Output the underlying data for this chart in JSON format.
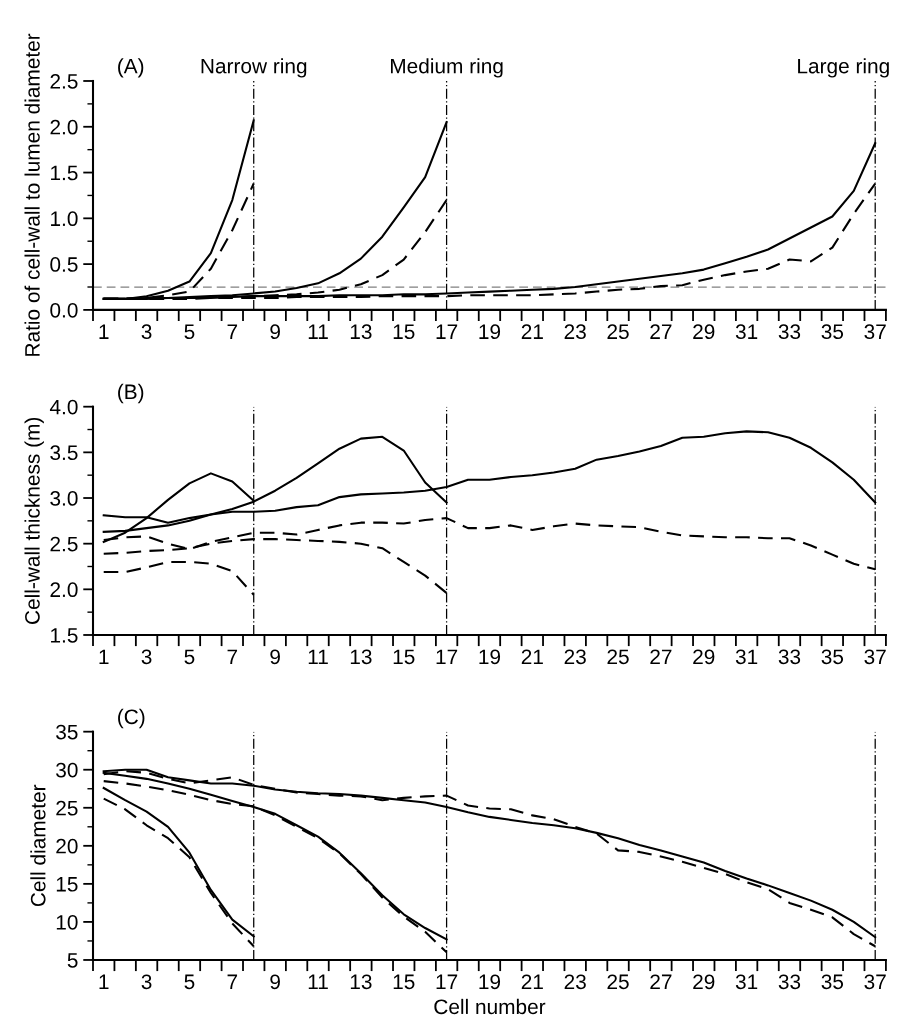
{
  "chart_data": [
    {
      "type": "line",
      "ylabel": "Ratio of cell-wall to lumen diameter",
      "annotations": [
        "(A)"
      ],
      "xlim": [
        0.5,
        37.5
      ],
      "ylim": [
        0,
        2.5
      ],
      "xticks": [
        {
          "value": 0.5,
          "label": null
        },
        {
          "value": 1.5,
          "label": null
        },
        {
          "value": 2.5,
          "label": null
        },
        {
          "value": 3.5,
          "label": null
        },
        {
          "value": 4.5,
          "label": null
        },
        {
          "value": 5.5,
          "label": null
        },
        {
          "value": 6.5,
          "label": null
        },
        {
          "value": 7.5,
          "label": null
        },
        {
          "value": 8.5,
          "label": null
        },
        {
          "value": 9.5,
          "label": null
        },
        {
          "value": 10.5,
          "label": null
        },
        {
          "value": 11.5,
          "label": null
        },
        {
          "value": 12.5,
          "label": null
        },
        {
          "value": 13.5,
          "label": null
        },
        {
          "value": 14.5,
          "label": null
        },
        {
          "value": 15.5,
          "label": null
        },
        {
          "value": 16.5,
          "label": null
        },
        {
          "value": 17.5,
          "label": null
        },
        {
          "value": 18.5,
          "label": null
        },
        {
          "value": 19.5,
          "label": null
        },
        {
          "value": 20.5,
          "label": null
        },
        {
          "value": 21.5,
          "label": null
        },
        {
          "value": 22.5,
          "label": null
        },
        {
          "value": 23.5,
          "label": null
        },
        {
          "value": 24.5,
          "label": null
        },
        {
          "value": 25.5,
          "label": null
        },
        {
          "value": 26.5,
          "label": null
        },
        {
          "value": 27.5,
          "label": null
        },
        {
          "value": 28.5,
          "label": null
        },
        {
          "value": 29.5,
          "label": null
        },
        {
          "value": 30.5,
          "label": null
        },
        {
          "value": 31.5,
          "label": null
        },
        {
          "value": 32.5,
          "label": null
        },
        {
          "value": 33.5,
          "label": null
        },
        {
          "value": 34.5,
          "label": null
        },
        {
          "value": 35.5,
          "label": null
        },
        {
          "value": 36.5,
          "label": null
        },
        {
          "value": 37.5,
          "label": null
        },
        1,
        3,
        5,
        7,
        9,
        11,
        13,
        15,
        17,
        19,
        21,
        23,
        25,
        27,
        29,
        31,
        33,
        35,
        37
      ],
      "yticks": [
        {
          "value": 0.0,
          "label": "0.0"
        },
        {
          "value": 0.25,
          "label": null
        },
        {
          "value": 0.5,
          "label": "0.5"
        },
        {
          "value": 0.75,
          "label": null
        },
        {
          "value": 1.0,
          "label": "1.0"
        },
        {
          "value": 1.25,
          "label": null
        },
        {
          "value": 1.5,
          "label": "1.5"
        },
        {
          "value": 1.75,
          "label": null
        },
        {
          "value": 2.0,
          "label": "2.0"
        },
        {
          "value": 2.25,
          "label": null
        },
        {
          "value": 2.5,
          "label": "2.5"
        }
      ],
      "ref_lines": [
        {
          "axis": "y",
          "value": 0.25,
          "label": null,
          "color": "#808080",
          "line_style": "dashed"
        },
        {
          "axis": "x",
          "value": 8,
          "label": "Narrow ring",
          "color": "#000000",
          "line_style": "dashdot"
        },
        {
          "axis": "x",
          "value": 17,
          "label": "Medium ring",
          "color": "#000000",
          "line_style": "dashdot"
        },
        {
          "axis": "x",
          "value": 37,
          "label": "Large ring",
          "color": "#000000",
          "line_style": "dashdot"
        }
      ],
      "series": [
        {
          "color": "#000000",
          "line_style": "solid",
          "x": [
            1,
            2,
            3,
            4,
            5,
            6,
            7,
            8
          ],
          "values": [
            0.12,
            0.12,
            0.15,
            0.21,
            0.31,
            0.62,
            1.2,
            2.07
          ]
        },
        {
          "color": "#000000",
          "line_style": "dashed",
          "x": [
            1,
            2,
            3,
            4,
            5,
            6,
            7,
            8
          ],
          "values": [
            0.12,
            0.12,
            0.13,
            0.16,
            0.2,
            0.45,
            0.87,
            1.38
          ]
        },
        {
          "color": "#000000",
          "line_style": "solid",
          "x": [
            1,
            2,
            3,
            4,
            5,
            6,
            7,
            8,
            9,
            10,
            11,
            12,
            13,
            14,
            15,
            16,
            17
          ],
          "values": [
            0.12,
            0.12,
            0.13,
            0.13,
            0.14,
            0.15,
            0.16,
            0.18,
            0.2,
            0.24,
            0.29,
            0.4,
            0.56,
            0.8,
            1.12,
            1.45,
            2.05
          ]
        },
        {
          "color": "#000000",
          "line_style": "dashed",
          "x": [
            1,
            2,
            3,
            4,
            5,
            6,
            7,
            8,
            9,
            10,
            11,
            12,
            13,
            14,
            15,
            16,
            17
          ],
          "values": [
            0.12,
            0.12,
            0.12,
            0.13,
            0.13,
            0.14,
            0.14,
            0.15,
            0.16,
            0.17,
            0.19,
            0.22,
            0.28,
            0.38,
            0.55,
            0.85,
            1.2
          ]
        },
        {
          "color": "#000000",
          "line_style": "solid",
          "x": [
            1,
            2,
            3,
            4,
            5,
            6,
            7,
            8,
            9,
            10,
            11,
            12,
            13,
            14,
            15,
            16,
            17,
            18,
            19,
            20,
            21,
            22,
            23,
            24,
            25,
            26,
            27,
            28,
            29,
            30,
            31,
            32,
            33,
            34,
            35,
            36,
            37
          ],
          "values": [
            0.12,
            0.12,
            0.12,
            0.13,
            0.13,
            0.13,
            0.14,
            0.15,
            0.15,
            0.15,
            0.15,
            0.16,
            0.16,
            0.16,
            0.17,
            0.17,
            0.18,
            0.19,
            0.2,
            0.21,
            0.22,
            0.23,
            0.25,
            0.28,
            0.31,
            0.34,
            0.37,
            0.4,
            0.44,
            0.51,
            0.58,
            0.66,
            0.78,
            0.9,
            1.02,
            1.3,
            1.82
          ]
        },
        {
          "color": "#000000",
          "line_style": "dashed",
          "x": [
            1,
            2,
            3,
            4,
            5,
            6,
            7,
            8,
            9,
            10,
            11,
            12,
            13,
            14,
            15,
            16,
            17,
            18,
            19,
            20,
            21,
            22,
            23,
            24,
            25,
            26,
            27,
            28,
            29,
            30,
            31,
            32,
            33,
            34,
            35,
            36,
            37
          ],
          "values": [
            0.12,
            0.12,
            0.12,
            0.12,
            0.12,
            0.13,
            0.13,
            0.13,
            0.13,
            0.14,
            0.14,
            0.14,
            0.14,
            0.15,
            0.15,
            0.15,
            0.15,
            0.16,
            0.16,
            0.16,
            0.16,
            0.17,
            0.18,
            0.2,
            0.22,
            0.23,
            0.26,
            0.27,
            0.33,
            0.38,
            0.42,
            0.45,
            0.55,
            0.53,
            0.68,
            1.05,
            1.38
          ]
        }
      ]
    },
    {
      "type": "line",
      "ylabel": "Cell-wall thickness (m)",
      "annotations": [
        "(B)"
      ],
      "xlim": [
        0.5,
        37.5
      ],
      "ylim": [
        1.5,
        4.0
      ],
      "xticks": [
        {
          "value": 0.5,
          "label": null
        },
        {
          "value": 1.5,
          "label": null
        },
        {
          "value": 2.5,
          "label": null
        },
        {
          "value": 3.5,
          "label": null
        },
        {
          "value": 4.5,
          "label": null
        },
        {
          "value": 5.5,
          "label": null
        },
        {
          "value": 6.5,
          "label": null
        },
        {
          "value": 7.5,
          "label": null
        },
        {
          "value": 8.5,
          "label": null
        },
        {
          "value": 9.5,
          "label": null
        },
        {
          "value": 10.5,
          "label": null
        },
        {
          "value": 11.5,
          "label": null
        },
        {
          "value": 12.5,
          "label": null
        },
        {
          "value": 13.5,
          "label": null
        },
        {
          "value": 14.5,
          "label": null
        },
        {
          "value": 15.5,
          "label": null
        },
        {
          "value": 16.5,
          "label": null
        },
        {
          "value": 17.5,
          "label": null
        },
        {
          "value": 18.5,
          "label": null
        },
        {
          "value": 19.5,
          "label": null
        },
        {
          "value": 20.5,
          "label": null
        },
        {
          "value": 21.5,
          "label": null
        },
        {
          "value": 22.5,
          "label": null
        },
        {
          "value": 23.5,
          "label": null
        },
        {
          "value": 24.5,
          "label": null
        },
        {
          "value": 25.5,
          "label": null
        },
        {
          "value": 26.5,
          "label": null
        },
        {
          "value": 27.5,
          "label": null
        },
        {
          "value": 28.5,
          "label": null
        },
        {
          "value": 29.5,
          "label": null
        },
        {
          "value": 30.5,
          "label": null
        },
        {
          "value": 31.5,
          "label": null
        },
        {
          "value": 32.5,
          "label": null
        },
        {
          "value": 33.5,
          "label": null
        },
        {
          "value": 34.5,
          "label": null
        },
        {
          "value": 35.5,
          "label": null
        },
        {
          "value": 36.5,
          "label": null
        },
        {
          "value": 37.5,
          "label": null
        },
        1,
        3,
        5,
        7,
        9,
        11,
        13,
        15,
        17,
        19,
        21,
        23,
        25,
        27,
        29,
        31,
        33,
        35,
        37
      ],
      "yticks": [
        1.5,
        {
          "value": 1.75,
          "label": null
        },
        {
          "value": 2.0,
          "label": "2.0"
        },
        {
          "value": 2.25,
          "label": null
        },
        2.5,
        {
          "value": 2.75,
          "label": null
        },
        {
          "value": 3.0,
          "label": "3.0"
        },
        {
          "value": 3.25,
          "label": null
        },
        3.5,
        {
          "value": 3.75,
          "label": null
        },
        {
          "value": 4.0,
          "label": "4.0"
        }
      ],
      "ref_lines": [
        {
          "axis": "x",
          "value": 8,
          "label": null,
          "color": "#000000",
          "line_style": "dashdot"
        },
        {
          "axis": "x",
          "value": 17,
          "label": null,
          "color": "#000000",
          "line_style": "dashdot"
        },
        {
          "axis": "x",
          "value": 37,
          "label": null,
          "color": "#000000",
          "line_style": "dashdot"
        }
      ],
      "series": [
        {
          "color": "#000000",
          "line_style": "solid",
          "x": [
            1,
            2,
            3,
            4,
            5,
            6,
            7,
            8
          ],
          "values": [
            2.52,
            2.62,
            2.78,
            2.98,
            3.16,
            3.27,
            3.18,
            2.97
          ]
        },
        {
          "color": "#000000",
          "line_style": "dashed",
          "x": [
            1,
            2,
            3,
            4,
            5,
            6,
            7,
            8
          ],
          "values": [
            2.19,
            2.19,
            2.24,
            2.3,
            2.3,
            2.28,
            2.2,
            1.94
          ]
        },
        {
          "color": "#000000",
          "line_style": "solid",
          "x": [
            1,
            2,
            3,
            4,
            5,
            6,
            7,
            8,
            9,
            10,
            11,
            12,
            13,
            14,
            15,
            16,
            17
          ],
          "values": [
            2.63,
            2.64,
            2.67,
            2.7,
            2.75,
            2.82,
            2.88,
            2.96,
            3.08,
            3.22,
            3.38,
            3.54,
            3.65,
            3.67,
            3.52,
            3.17,
            2.95
          ]
        },
        {
          "color": "#000000",
          "line_style": "dashed",
          "x": [
            1,
            2,
            3,
            4,
            5,
            6,
            7,
            8,
            9,
            10,
            11,
            12,
            13,
            14,
            15,
            16,
            17
          ],
          "values": [
            2.39,
            2.4,
            2.42,
            2.43,
            2.45,
            2.5,
            2.53,
            2.55,
            2.55,
            2.54,
            2.53,
            2.52,
            2.5,
            2.45,
            2.3,
            2.15,
            1.96
          ]
        },
        {
          "color": "#000000",
          "line_style": "solid",
          "x": [
            1,
            2,
            3,
            4,
            5,
            6,
            7,
            8,
            9,
            10,
            11,
            12,
            13,
            14,
            15,
            16,
            17,
            18,
            19,
            20,
            21,
            22,
            23,
            24,
            25,
            26,
            27,
            28,
            29,
            30,
            31,
            32,
            33,
            34,
            35,
            36,
            37
          ],
          "values": [
            2.81,
            2.79,
            2.79,
            2.73,
            2.78,
            2.82,
            2.85,
            2.85,
            2.86,
            2.9,
            2.92,
            3.01,
            3.04,
            3.05,
            3.06,
            3.08,
            3.12,
            3.2,
            3.2,
            3.23,
            3.25,
            3.28,
            3.32,
            3.42,
            3.46,
            3.51,
            3.57,
            3.66,
            3.67,
            3.71,
            3.73,
            3.72,
            3.66,
            3.55,
            3.39,
            3.2,
            2.95
          ]
        },
        {
          "color": "#000000",
          "line_style": "dashed",
          "x": [
            1,
            2,
            3,
            4,
            5,
            6,
            7,
            8,
            9,
            10,
            11,
            12,
            13,
            14,
            15,
            16,
            17,
            18,
            19,
            20,
            21,
            22,
            23,
            24,
            25,
            26,
            27,
            28,
            29,
            30,
            31,
            32,
            33,
            34,
            35,
            36,
            37
          ],
          "values": [
            2.54,
            2.57,
            2.58,
            2.5,
            2.44,
            2.52,
            2.57,
            2.62,
            2.62,
            2.6,
            2.65,
            2.7,
            2.73,
            2.73,
            2.72,
            2.76,
            2.78,
            2.67,
            2.67,
            2.7,
            2.65,
            2.69,
            2.72,
            2.7,
            2.69,
            2.68,
            2.63,
            2.59,
            2.58,
            2.57,
            2.57,
            2.56,
            2.56,
            2.48,
            2.38,
            2.28,
            2.22
          ]
        }
      ]
    },
    {
      "type": "line",
      "ylabel": "Cell diameter",
      "xlabel": "Cell number",
      "annotations": [
        "(C)"
      ],
      "xlim": [
        0.5,
        37.5
      ],
      "ylim": [
        5,
        35
      ],
      "xticks": [
        {
          "value": 0.5,
          "label": null
        },
        {
          "value": 1.5,
          "label": null
        },
        {
          "value": 2.5,
          "label": null
        },
        {
          "value": 3.5,
          "label": null
        },
        {
          "value": 4.5,
          "label": null
        },
        {
          "value": 5.5,
          "label": null
        },
        {
          "value": 6.5,
          "label": null
        },
        {
          "value": 7.5,
          "label": null
        },
        {
          "value": 8.5,
          "label": null
        },
        {
          "value": 9.5,
          "label": null
        },
        {
          "value": 10.5,
          "label": null
        },
        {
          "value": 11.5,
          "label": null
        },
        {
          "value": 12.5,
          "label": null
        },
        {
          "value": 13.5,
          "label": null
        },
        {
          "value": 14.5,
          "label": null
        },
        {
          "value": 15.5,
          "label": null
        },
        {
          "value": 16.5,
          "label": null
        },
        {
          "value": 17.5,
          "label": null
        },
        {
          "value": 18.5,
          "label": null
        },
        {
          "value": 19.5,
          "label": null
        },
        {
          "value": 20.5,
          "label": null
        },
        {
          "value": 21.5,
          "label": null
        },
        {
          "value": 22.5,
          "label": null
        },
        {
          "value": 23.5,
          "label": null
        },
        {
          "value": 24.5,
          "label": null
        },
        {
          "value": 25.5,
          "label": null
        },
        {
          "value": 26.5,
          "label": null
        },
        {
          "value": 27.5,
          "label": null
        },
        {
          "value": 28.5,
          "label": null
        },
        {
          "value": 29.5,
          "label": null
        },
        {
          "value": 30.5,
          "label": null
        },
        {
          "value": 31.5,
          "label": null
        },
        {
          "value": 32.5,
          "label": null
        },
        {
          "value": 33.5,
          "label": null
        },
        {
          "value": 34.5,
          "label": null
        },
        {
          "value": 35.5,
          "label": null
        },
        {
          "value": 36.5,
          "label": null
        },
        {
          "value": 37.5,
          "label": null
        },
        1,
        3,
        5,
        7,
        9,
        11,
        13,
        15,
        17,
        19,
        21,
        23,
        25,
        27,
        29,
        31,
        33,
        35,
        37
      ],
      "yticks": [
        5,
        {
          "value": 7.5,
          "label": null
        },
        10,
        {
          "value": 12.5,
          "label": null
        },
        15,
        {
          "value": 17.5,
          "label": null
        },
        20,
        {
          "value": 22.5,
          "label": null
        },
        25,
        {
          "value": 27.5,
          "label": null
        },
        30,
        {
          "value": 32.5,
          "label": null
        },
        35
      ],
      "ref_lines": [
        {
          "axis": "x",
          "value": 8,
          "label": null,
          "color": "#000000",
          "line_style": "dashdot"
        },
        {
          "axis": "x",
          "value": 17,
          "label": null,
          "color": "#000000",
          "line_style": "dashdot"
        },
        {
          "axis": "x",
          "value": 37,
          "label": null,
          "color": "#000000",
          "line_style": "dashdot"
        }
      ],
      "series": [
        {
          "color": "#000000",
          "line_style": "solid",
          "x": [
            1,
            2,
            3,
            4,
            5,
            6,
            7,
            8
          ],
          "values": [
            27.6,
            26.0,
            24.5,
            22.5,
            19.1,
            14.2,
            10.3,
            8.1
          ]
        },
        {
          "color": "#000000",
          "line_style": "dashed",
          "x": [
            1,
            2,
            3,
            4,
            5,
            6,
            7,
            8
          ],
          "values": [
            26.2,
            24.8,
            22.7,
            21.0,
            18.5,
            13.8,
            9.8,
            6.8
          ]
        },
        {
          "color": "#000000",
          "line_style": "solid",
          "x": [
            1,
            2,
            3,
            4,
            5,
            6,
            7,
            8,
            9,
            10,
            11,
            12,
            13,
            14,
            15,
            16,
            17
          ],
          "values": [
            29.6,
            29.2,
            28.8,
            28.2,
            27.5,
            26.7,
            25.9,
            25.1,
            24.2,
            22.7,
            21.2,
            19.1,
            16.4,
            13.5,
            11.0,
            9.2,
            7.7
          ]
        },
        {
          "color": "#000000",
          "line_style": "dashed",
          "x": [
            1,
            2,
            3,
            4,
            5,
            6,
            7,
            8,
            9,
            10,
            11,
            12,
            13,
            14,
            15,
            16,
            17
          ],
          "values": [
            28.5,
            28.2,
            27.8,
            27.3,
            26.7,
            26.0,
            25.5,
            25.2,
            24.0,
            22.5,
            21.0,
            19.0,
            16.3,
            13.2,
            10.7,
            8.7,
            6.0
          ]
        },
        {
          "color": "#000000",
          "line_style": "solid",
          "x": [
            1,
            2,
            3,
            4,
            5,
            6,
            7,
            8,
            9,
            10,
            11,
            12,
            13,
            14,
            15,
            16,
            17,
            18,
            19,
            20,
            21,
            22,
            23,
            24,
            25,
            26,
            27,
            28,
            29,
            30,
            31,
            32,
            33,
            34,
            35,
            36,
            37
          ],
          "values": [
            29.8,
            30.0,
            30.0,
            29.0,
            28.6,
            28.2,
            28.2,
            27.9,
            27.4,
            27.1,
            26.9,
            26.8,
            26.6,
            26.3,
            26.0,
            25.7,
            25.1,
            24.4,
            23.8,
            23.4,
            23.0,
            22.7,
            22.3,
            21.7,
            21.0,
            20.1,
            19.4,
            18.6,
            17.8,
            16.7,
            15.7,
            14.8,
            13.8,
            12.8,
            11.6,
            10.0,
            8.0
          ]
        },
        {
          "color": "#000000",
          "line_style": "dashed",
          "x": [
            1,
            2,
            3,
            4,
            5,
            6,
            7,
            8,
            9,
            10,
            11,
            12,
            13,
            14,
            15,
            16,
            17,
            18,
            19,
            20,
            21,
            22,
            23,
            24,
            25,
            26,
            27,
            28,
            29,
            30,
            31,
            32,
            33,
            34,
            35,
            36,
            37
          ],
          "values": [
            29.4,
            29.8,
            29.6,
            28.8,
            28.2,
            28.6,
            29.0,
            28.0,
            27.5,
            27.0,
            26.8,
            26.6,
            26.5,
            26.0,
            26.3,
            26.5,
            26.6,
            25.3,
            24.9,
            24.8,
            24.0,
            23.5,
            22.5,
            21.6,
            19.4,
            19.2,
            18.6,
            17.9,
            17.1,
            16.3,
            15.2,
            14.3,
            12.5,
            11.6,
            10.6,
            8.4,
            6.8
          ]
        }
      ]
    }
  ]
}
